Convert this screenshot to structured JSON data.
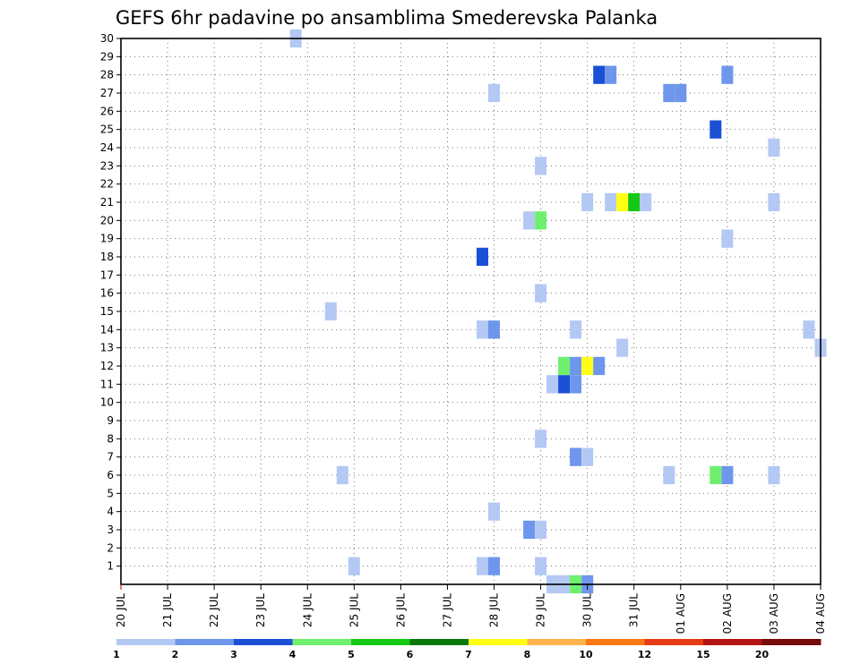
{
  "chart_data": {
    "type": "heatmap",
    "title": "GEFS 6hr padavine po ansamblima Smederevska Palanka",
    "x_tick_labels": [
      "20 JUL",
      "21 JUL",
      "22 JUL",
      "23 JUL",
      "24 JUL",
      "25 JUL",
      "26 JUL",
      "27 JUL",
      "28 JUL",
      "29 JUL",
      "30 JUL",
      "31 JUL",
      "01 AUG",
      "02 AUG",
      "03 AUG",
      "04 AUG"
    ],
    "y_tick_labels": [
      "1",
      "2",
      "3",
      "4",
      "5",
      "6",
      "7",
      "8",
      "9",
      "10",
      "11",
      "12",
      "13",
      "14",
      "15",
      "16",
      "17",
      "18",
      "19",
      "20",
      "21",
      "22",
      "23",
      "24",
      "25",
      "26",
      "27",
      "28",
      "29",
      "30"
    ],
    "x_range_days": [
      0,
      15
    ],
    "y_range": [
      0,
      30
    ],
    "grid": true,
    "colorbar": {
      "boundaries": [
        "1",
        "2",
        "3",
        "4",
        "5",
        "6",
        "7",
        "8",
        "10",
        "12",
        "15",
        "20"
      ],
      "colors": [
        "#b4c8f4",
        "#6e96ec",
        "#1a4fd6",
        "#6ef06e",
        "#14c814",
        "#0a780a",
        "#ffff14",
        "#ffb450",
        "#ff7814",
        "#e63c14",
        "#b41414",
        "#780a0a"
      ]
    },
    "series_note": "cells: member (y), day offset from 20 JUL (x, 0.25 = 6 h), color class index",
    "cells": [
      [
        30,
        3.75,
        0
      ],
      [
        28,
        10.25,
        2
      ],
      [
        28,
        10.5,
        1
      ],
      [
        28,
        13.0,
        1
      ],
      [
        27,
        8.0,
        0
      ],
      [
        27,
        11.75,
        1
      ],
      [
        27,
        12.0,
        1
      ],
      [
        25,
        12.75,
        2
      ],
      [
        24,
        14.0,
        0
      ],
      [
        23,
        9.0,
        0
      ],
      [
        21,
        10.0,
        0
      ],
      [
        21,
        10.5,
        0
      ],
      [
        21,
        10.75,
        6
      ],
      [
        21,
        11.0,
        4
      ],
      [
        21,
        11.25,
        0
      ],
      [
        21,
        14.0,
        0
      ],
      [
        20,
        8.75,
        0
      ],
      [
        20,
        9.0,
        3
      ],
      [
        19,
        13.0,
        0
      ],
      [
        18,
        7.75,
        2
      ],
      [
        16,
        9.0,
        0
      ],
      [
        15,
        4.5,
        0
      ],
      [
        14,
        7.75,
        0
      ],
      [
        14,
        8.0,
        1
      ],
      [
        14,
        9.75,
        0
      ],
      [
        14,
        14.75,
        0
      ],
      [
        13,
        10.75,
        0
      ],
      [
        13,
        15.0,
        0
      ],
      [
        12,
        9.5,
        3
      ],
      [
        12,
        9.75,
        1
      ],
      [
        12,
        10.0,
        6
      ],
      [
        12,
        10.25,
        1
      ],
      [
        11,
        9.25,
        0
      ],
      [
        11,
        9.5,
        2
      ],
      [
        11,
        9.75,
        1
      ],
      [
        8,
        9.0,
        0
      ],
      [
        7,
        9.75,
        1
      ],
      [
        7,
        10.0,
        0
      ],
      [
        6,
        4.75,
        0
      ],
      [
        6,
        11.75,
        0
      ],
      [
        6,
        12.75,
        3
      ],
      [
        6,
        13.0,
        1
      ],
      [
        6,
        14.0,
        0
      ],
      [
        4,
        8.0,
        0
      ],
      [
        3,
        8.75,
        1
      ],
      [
        3,
        9.0,
        0
      ],
      [
        1,
        5.0,
        0
      ],
      [
        1,
        7.75,
        0
      ],
      [
        1,
        8.0,
        1
      ],
      [
        1,
        9.0,
        0
      ],
      [
        0,
        9.25,
        0
      ],
      [
        0,
        9.5,
        0
      ],
      [
        0,
        9.75,
        3
      ],
      [
        0,
        10.0,
        1
      ]
    ]
  }
}
